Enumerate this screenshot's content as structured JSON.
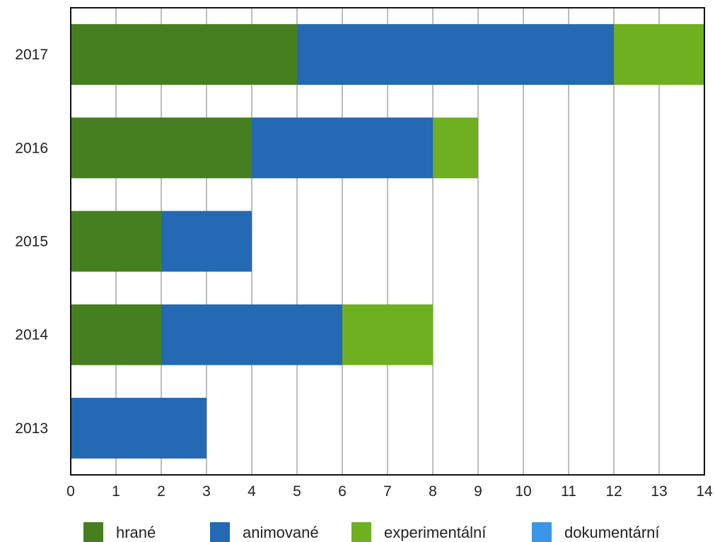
{
  "chart_data": {
    "type": "bar",
    "orientation": "horizontal",
    "stacked": true,
    "categories": [
      "2017",
      "2016",
      "2015",
      "2014",
      "2013"
    ],
    "series": [
      {
        "name": "hrané",
        "color": "#457f1f",
        "values": [
          5,
          4,
          2,
          2,
          0
        ]
      },
      {
        "name": "animované",
        "color": "#2469b3",
        "values": [
          7,
          4,
          2,
          4,
          3
        ]
      },
      {
        "name": "experimentální",
        "color": "#6eb01f",
        "values": [
          2,
          1,
          0,
          2,
          0
        ]
      },
      {
        "name": "dokumentární",
        "color": "#3b95e8",
        "values": [
          0,
          0,
          0,
          0,
          0
        ]
      }
    ],
    "xlim": [
      0,
      14
    ],
    "x_ticks": [
      "0",
      "1",
      "2",
      "3",
      "4",
      "5",
      "6",
      "7",
      "8",
      "9",
      "10",
      "11",
      "12",
      "13",
      "14"
    ],
    "grid": true,
    "legend_position": "bottom",
    "title": "",
    "xlabel": "",
    "ylabel": ""
  }
}
